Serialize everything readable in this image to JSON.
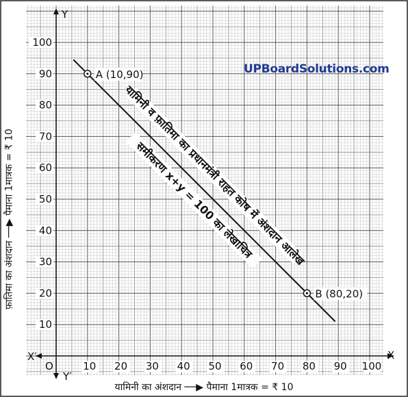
{
  "chart_data": {
    "type": "line",
    "x": [
      10,
      80
    ],
    "y": [
      90,
      20
    ],
    "xlim": [
      0,
      100
    ],
    "ylim": [
      0,
      100
    ],
    "x_ticks": [
      10,
      20,
      30,
      40,
      50,
      60,
      70,
      80,
      90,
      100
    ],
    "y_ticks": [
      10,
      20,
      30,
      40,
      50,
      60,
      70,
      80,
      90,
      100
    ],
    "grid": true,
    "points": [
      {
        "label": "A (10,90)",
        "x": 10,
        "y": 90
      },
      {
        "label": "B (80,20)",
        "x": 80,
        "y": 20
      }
    ],
    "annotations": [
      "यामिनी व फ़ातिमा का प्रधानमंत्री राहत कोष में अंशदान आलेख",
      "समीकरण x+y = 100 का लेखाचित्र"
    ],
    "axis_names": {
      "x_pos": "X",
      "x_neg": "X′",
      "y_pos": "Y",
      "y_neg": "Y′",
      "origin": "O"
    },
    "xlabel": "यामिनी का अंशदान",
    "ylabel": "फ़ातिमा का अंशदान",
    "x_scale": "पैमाना 1मात्रक = ₹ 10",
    "y_scale": "पैमाना 1मात्रक = ₹ 10",
    "watermark": "UPBoardSolutions.com"
  }
}
